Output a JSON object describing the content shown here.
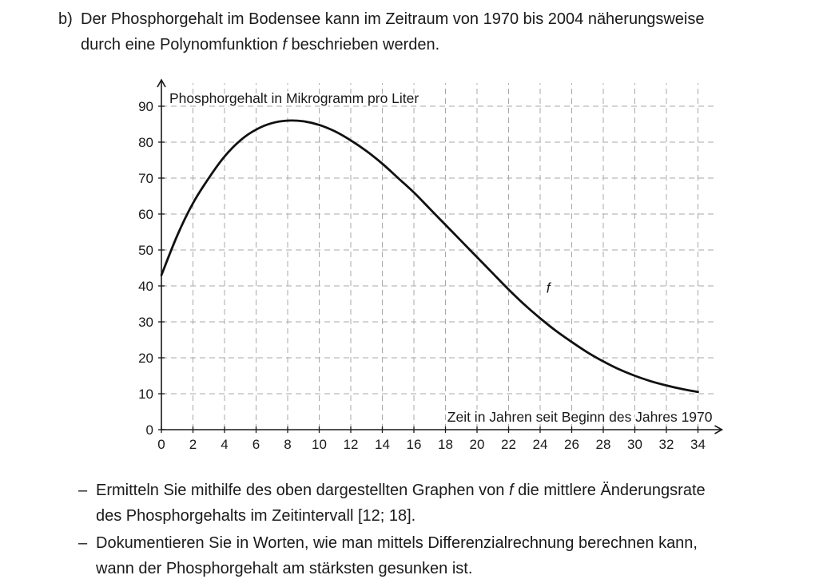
{
  "problem": {
    "label": "b)",
    "line1": "Der Phosphorgehalt im Bodensee kann im Zeitraum von 1970 bis 2004 näherungsweise",
    "line2_before": "durch eine Polynomfunktion ",
    "line2_func": "f",
    "line2_after": " beschrieben werden."
  },
  "chart_data": {
    "type": "line",
    "ylabel": "Phosphorgehalt in Mikrogramm pro Liter",
    "xlabel": "Zeit in Jahren seit Beginn des Jahres 1970",
    "xlim": [
      0,
      34
    ],
    "ylim": [
      0,
      90
    ],
    "xticks": [
      0,
      2,
      4,
      6,
      8,
      10,
      12,
      14,
      16,
      18,
      20,
      22,
      24,
      26,
      28,
      30,
      32,
      34
    ],
    "yticks": [
      0,
      10,
      20,
      30,
      40,
      50,
      60,
      70,
      80,
      90
    ],
    "grid": true,
    "grid_style": "dashed",
    "series": [
      {
        "name": "f",
        "x": [
          0,
          1,
          2,
          3,
          4,
          5,
          6,
          7,
          8,
          9,
          10,
          11,
          12,
          13,
          14,
          15,
          16,
          17,
          18,
          19,
          20,
          21,
          22,
          23,
          24,
          25,
          26,
          27,
          28,
          29,
          30,
          31,
          32,
          33,
          34
        ],
        "y": [
          43,
          54,
          63,
          70,
          76,
          80.5,
          83.5,
          85.3,
          86,
          85.8,
          84.8,
          83,
          80.5,
          77.5,
          74,
          70,
          66,
          61.5,
          57,
          52.5,
          48,
          43.5,
          39,
          34.8,
          31,
          27.5,
          24.4,
          21.5,
          19,
          16.8,
          15,
          13.5,
          12.3,
          11.3,
          10.5
        ]
      }
    ]
  },
  "tasks": [
    {
      "dash": "–",
      "line1_before": "Ermitteln Sie mithilfe des oben dargestellten Graphen von ",
      "line1_func": "f",
      "line1_after": " die mittlere Änderungsrate",
      "line2": "des Phosphorgehalts im Zeitintervall [12; 18]."
    },
    {
      "dash": "–",
      "line1": "Dokumentieren Sie in Worten, wie man mittels Differenzialrechnung berechnen kann,",
      "line2": "wann der Phosphorgehalt am stärksten gesunken ist."
    }
  ]
}
